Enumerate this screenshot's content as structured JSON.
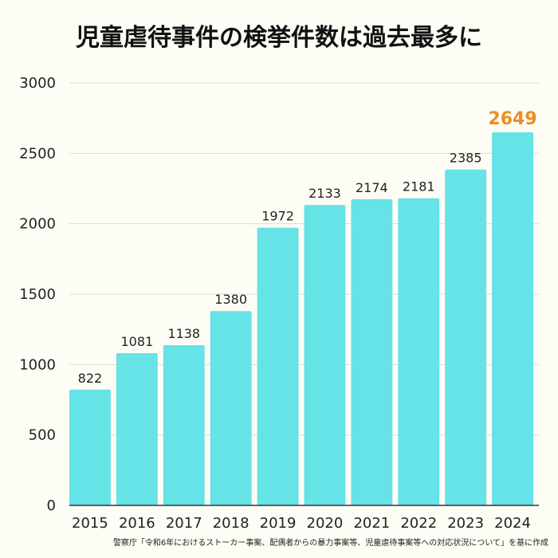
{
  "chart_data": {
    "type": "bar",
    "title": "児童虐待事件の検挙件数は過去最多に",
    "categories": [
      "2015",
      "2016",
      "2017",
      "2018",
      "2019",
      "2020",
      "2021",
      "2022",
      "2023",
      "2024"
    ],
    "values": [
      822,
      1081,
      1138,
      1380,
      1972,
      2133,
      2174,
      2181,
      2385,
      2649
    ],
    "ylim": [
      0,
      3000
    ],
    "yticks": [
      0,
      500,
      1000,
      1500,
      2000,
      2500,
      3000
    ],
    "grid": true,
    "xlabel": "",
    "ylabel": "",
    "highlight_index": 9,
    "colors": {
      "bar": "#66e3e6",
      "highlight_label": "#f08c1e",
      "label": "#222222",
      "grid": "#dcdcd4",
      "axis": "#333333"
    }
  },
  "source": "警察庁「令和6年におけるストーカー事案、配偶者からの暴力事案等、児童虐待事案等への対応状況について」を基に作成"
}
